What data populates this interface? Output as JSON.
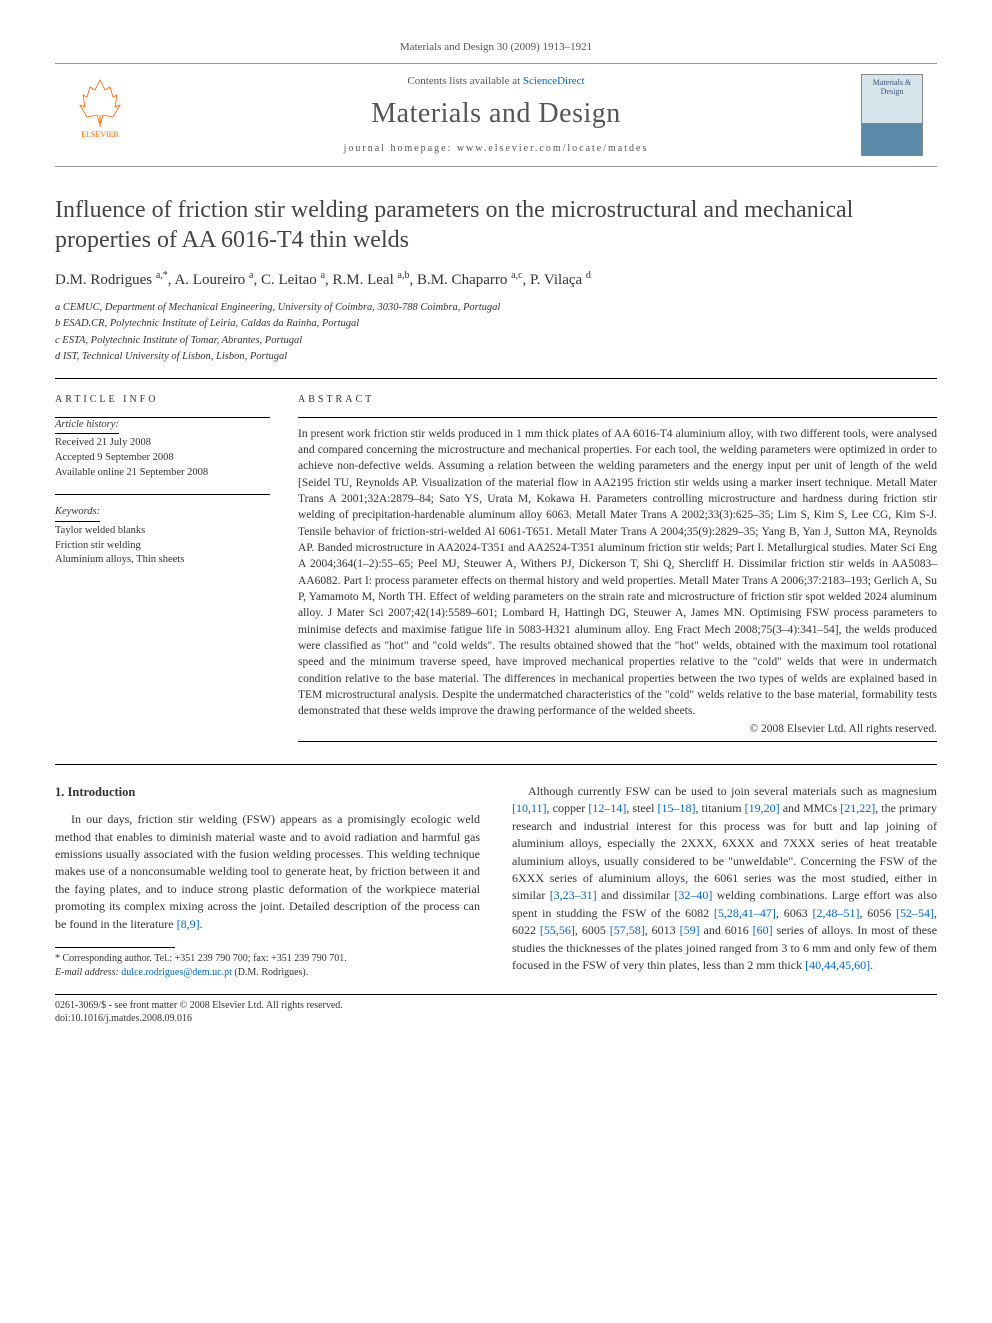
{
  "header": {
    "citation": "Materials and Design 30 (2009) 1913–1921",
    "contents_prefix": "Contents lists available at ",
    "contents_link": "ScienceDirect",
    "journal_name": "Materials and Design",
    "homepage_label": "journal homepage: www.elsevier.com/locate/matdes",
    "publisher": "ELSEVIER",
    "cover_text": "Materials & Design"
  },
  "title": "Influence of friction stir welding parameters on the microstructural and mechanical properties of AA 6016-T4 thin welds",
  "authors_html": "D.M. Rodrigues <sup>a,*</sup>, A. Loureiro <sup>a</sup>, C. Leitao <sup>a</sup>, R.M. Leal <sup>a,b</sup>, B.M. Chaparro <sup>a,c</sup>, P. Vilaça <sup>d</sup>",
  "affiliations": [
    "a CEMUC, Department of Mechanical Engineering, University of Coimbra, 3030-788 Coimbra, Portugal",
    "b ESAD.CR, Polytechnic Institute of Leiria, Caldas da Rainha, Portugal",
    "c ESTA, Polytechnic Institute of Tomar, Abrantes, Portugal",
    "d IST, Technical University of Lisbon, Lisbon, Portugal"
  ],
  "article_info": {
    "heading": "ARTICLE INFO",
    "history_label": "Article history:",
    "history": [
      "Received 21 July 2008",
      "Accepted 9 September 2008",
      "Available online 21 September 2008"
    ],
    "keywords_label": "Keywords:",
    "keywords": [
      "Taylor welded blanks",
      "Friction stir welding",
      "Aluminium alloys, Thin sheets"
    ]
  },
  "abstract": {
    "heading": "ABSTRACT",
    "text": "In present work friction stir welds produced in 1 mm thick plates of AA 6016-T4 aluminium alloy, with two different tools, were analysed and compared concerning the microstructure and mechanical properties. For each tool, the welding parameters were optimized in order to achieve non-defective welds. Assuming a relation between the welding parameters and the energy input per unit of length of the weld [Seidel TU, Reynolds AP. Visualization of the material flow in AA2195 friction stir welds using a marker insert technique. Metall Mater Trans A 2001;32A:2879–84; Sato YS, Urata M, Kokawa H. Parameters controlling microstructure and hardness during friction stir welding of precipitation-hardenable aluminum alloy 6063. Metall Mater Trans A 2002;33(3):625–35; Lim S, Kim S, Lee CG, Kim S-J. Tensile behavior of friction-stri-welded Al 6061-T651. Metall Mater Trans A 2004;35(9):2829–35; Yang B, Yan J, Sutton MA, Reynolds AP. Banded microstructure in AA2024-T351 and AA2524-T351 aluminum friction stir welds; Part I. Metallurgical studies. Mater Sci Eng A 2004;364(1–2):55–65; Peel MJ, Steuwer A, Withers PJ, Dickerson T, Shi Q, Shercliff H. Dissimilar friction stir welds in AA5083–AA6082. Part I: process parameter effects on thermal history and weld properties. Metall Mater Trans A 2006;37:2183–193; Gerlich A, Su P, Yamamoto M, North TH. Effect of welding parameters on the strain rate and microstructure of friction stir spot welded 2024 aluminum alloy. J Mater Sci 2007;42(14):5589–601; Lombard H, Hattingh DG, Steuwer A, James MN. Optimising FSW process parameters to minimise defects and maximise fatigue life in 5083-H321 aluminum alloy. Eng Fract Mech 2008;75(3–4):341–54], the welds produced were classified as \"hot\" and \"cold welds\". The results obtained showed that the \"hot\" welds, obtained with the maximum tool rotational speed and the minimum traverse speed, have improved mechanical properties relative to the \"cold\" welds that were in undermatch condition relative to the base material. The differences in mechanical properties between the two types of welds are explained based in TEM microstructural analysis. Despite the undermatched characteristics of the \"cold\" welds relative to the base material, formability tests demonstrated that these welds improve the drawing performance of the welded sheets.",
    "copyright": "© 2008 Elsevier Ltd. All rights reserved."
  },
  "section1": {
    "heading": "1. Introduction",
    "p1_pre": "In our days, friction stir welding (FSW) appears as a promisingly ecologic weld method that enables to diminish material waste and to avoid radiation and harmful gas emissions usually associated with the fusion welding processes. This welding technique makes use of a nonconsumable welding tool to generate heat, by friction between it and the faying plates, and to induce strong plastic deformation of the workpiece material promoting its complex mixing across the joint. Detailed description of the process can be found in the literature ",
    "p1_ref": "[8,9]",
    "p1_post": "."
  },
  "col2": {
    "p1": "Although currently FSW can be used to join several materials such as magnesium [10,11], copper [12–14], steel [15–18], titanium [19,20] and MMCs [21,22], the primary research and industrial interest for this process was for butt and lap joining of aluminium alloys, especially the 2XXX, 6XXX and 7XXX series of heat treatable aluminium alloys, usually considered to be \"unweldable\". Concerning the FSW of the 6XXX series of aluminium alloys, the 6061 series was the most studied, either in similar [3,23–31] and dissimilar [32–40] welding combinations. Large effort was also spent in studding the FSW of the 6082 [5,28,41–47], 6063 [2,48–51], 6056 [52–54], 6022 [55,56], 6005 [57,58], 6013 [59] and 6016 [60] series of alloys. In most of these studies the thicknesses of the plates joined ranged from 3 to 6 mm and only few of them focused in the FSW of very thin plates, less than 2 mm thick [40,44,45,60].",
    "refs": [
      "[10,11]",
      "[12–14]",
      "[15–18]",
      "[19,20]",
      "[21,22]",
      "[3,23–31]",
      "[32–40]",
      "[5,28,41–47]",
      "[2,48–51]",
      "[52–54]",
      "[55,56]",
      "[57,58]",
      "[59]",
      "[60]",
      "[40,44,45,60]"
    ]
  },
  "footnote": {
    "corr": "* Corresponding author. Tel.: +351 239 790 700; fax: +351 239 790 701.",
    "email_label": "E-mail address: ",
    "email": "dulce.rodrigues@dem.uc.pt",
    "email_post": " (D.M. Rodrigues)."
  },
  "footer": {
    "issn": "0261-3069/$ - see front matter © 2008 Elsevier Ltd. All rights reserved.",
    "doi": "doi:10.1016/j.matdes.2008.09.016"
  },
  "colors": {
    "link": "#0066cc",
    "text": "#333333",
    "muted": "#555555",
    "elsevier_orange": "#ff6600",
    "rule": "#000000"
  },
  "typography": {
    "title_fontsize": 24,
    "journal_fontsize": 28,
    "body_fontsize": 12,
    "abstract_fontsize": 11.5,
    "small_fontsize": 10.5
  }
}
